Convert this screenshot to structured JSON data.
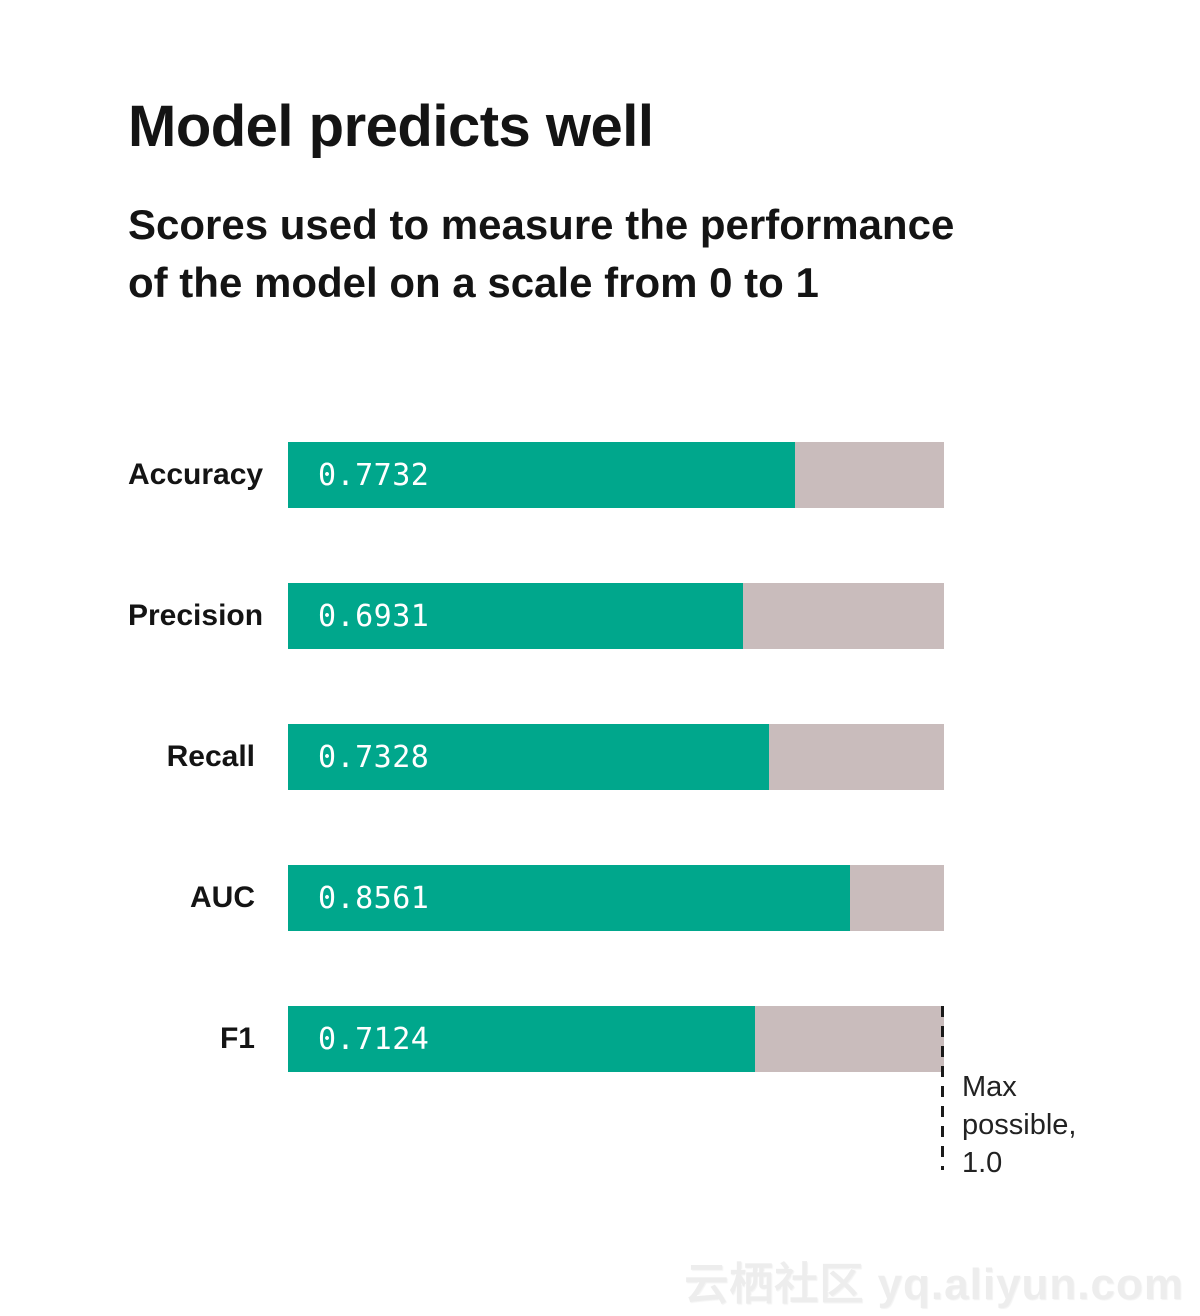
{
  "header": {
    "title": "Model predicts well",
    "subtitle_line1": "Scores used to measure the performance",
    "subtitle_line2": "of the model on a scale from 0 to 1"
  },
  "chart_data": {
    "type": "bar",
    "orientation": "horizontal",
    "title": "Model predicts well",
    "subtitle": "Scores used to measure the performance of the model on a scale from 0 to 1",
    "categories": [
      "Accuracy",
      "Precision",
      "Recall",
      "AUC",
      "F1"
    ],
    "values": [
      0.7732,
      0.6931,
      0.7328,
      0.8561,
      0.7124
    ],
    "value_labels": [
      "0.7732",
      "0.6931",
      "0.7328",
      "0.8561",
      "0.7124"
    ],
    "xlim": [
      0,
      1
    ],
    "grid": "off",
    "legend": "none",
    "annotation": "Max possible, 1.0",
    "annotation_lines": [
      "Max",
      "possible,",
      "1.0"
    ],
    "colors": {
      "bar_fill": "#00a78c",
      "bar_track": "#c9bcbc",
      "value_text": "#ffffff",
      "annotation_line": "#1a1a1a"
    }
  },
  "watermark": "云栖社区 yq.aliyun.com"
}
